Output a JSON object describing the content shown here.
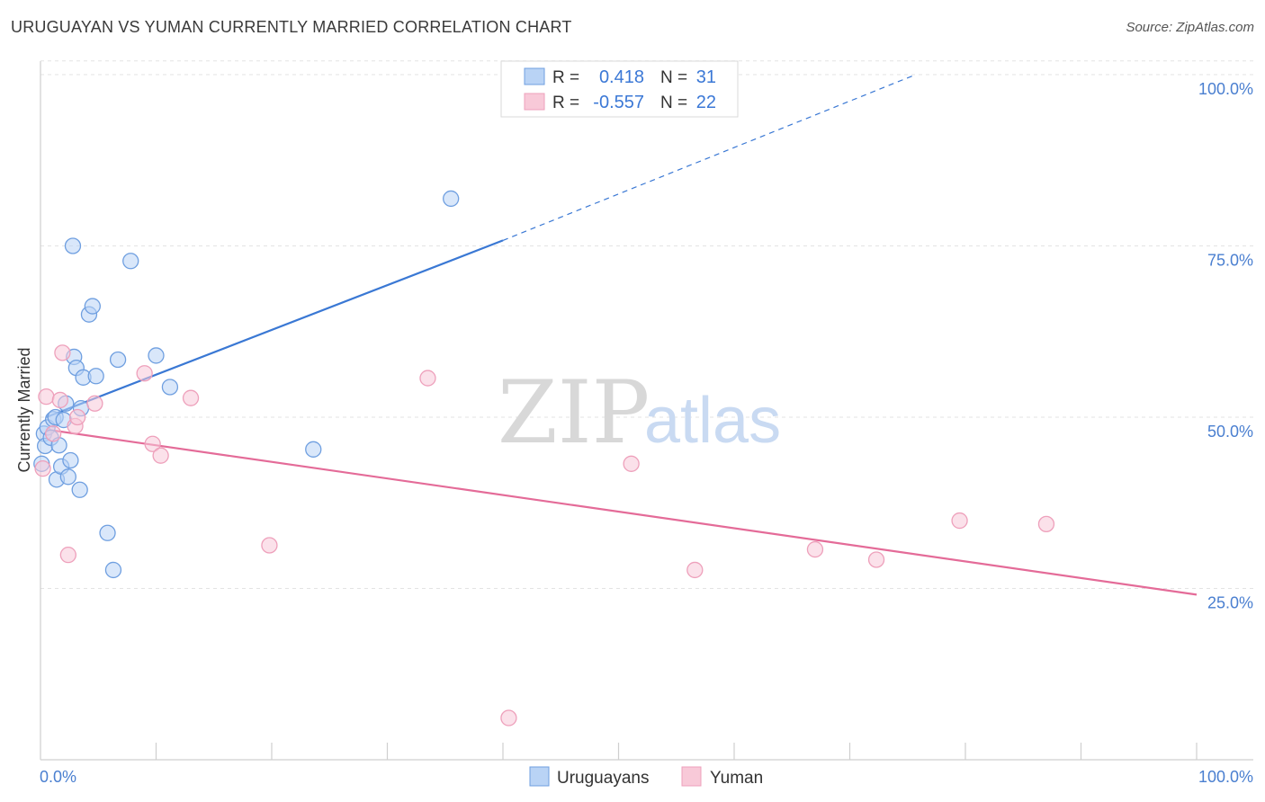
{
  "header": {
    "title": "URUGUAYAN VS YUMAN CURRENTLY MARRIED CORRELATION CHART",
    "source": "Source: ZipAtlas.com"
  },
  "watermark": {
    "zip": "ZIP",
    "atlas": "atlas"
  },
  "colors": {
    "blue": "#3a78d4",
    "blue_fill": "#b9d3f5",
    "blue_stroke": "#6f9fe0",
    "pink": "#e46b98",
    "pink_fill": "#f8c9d8",
    "pink_stroke": "#eea0bb"
  },
  "legend": {
    "r_label": "R =",
    "n_label": "N =",
    "rows": [
      {
        "series": "Uruguayans",
        "r": "0.418",
        "n": "31"
      },
      {
        "series": "Yuman",
        "r": "-0.557",
        "n": "22"
      }
    ]
  },
  "chart_data": {
    "type": "scatter",
    "title": "URUGUAYAN VS YUMAN CURRENTLY MARRIED CORRELATION CHART",
    "xlabel": "",
    "ylabel": "Currently Married",
    "xlim": [
      0,
      100
    ],
    "ylim": [
      0,
      102
    ],
    "x_tick_labels": [
      "0.0%",
      "100.0%"
    ],
    "y_tick_labels": [
      "25.0%",
      "50.0%",
      "75.0%",
      "100.0%"
    ],
    "y_ticks": [
      25,
      50,
      75,
      100
    ],
    "grid": true,
    "legend_position": "bottom-center",
    "series": [
      {
        "name": "Uruguayans",
        "points": [
          [
            0.3,
            47.6
          ],
          [
            0.4,
            45.8
          ],
          [
            0.6,
            48.5
          ],
          [
            0.9,
            47.0
          ],
          [
            1.1,
            49.7
          ],
          [
            1.3,
            50.0
          ],
          [
            1.4,
            40.9
          ],
          [
            1.6,
            45.9
          ],
          [
            1.8,
            42.8
          ],
          [
            2.0,
            49.6
          ],
          [
            2.2,
            52.0
          ],
          [
            2.4,
            41.3
          ],
          [
            2.6,
            43.7
          ],
          [
            2.8,
            75.0
          ],
          [
            2.9,
            58.8
          ],
          [
            3.1,
            57.2
          ],
          [
            3.4,
            39.4
          ],
          [
            3.5,
            51.3
          ],
          [
            3.7,
            55.8
          ],
          [
            4.2,
            65.0
          ],
          [
            4.5,
            66.2
          ],
          [
            4.8,
            56.0
          ],
          [
            5.8,
            33.1
          ],
          [
            6.3,
            27.7
          ],
          [
            6.7,
            58.4
          ],
          [
            7.8,
            72.8
          ],
          [
            10.0,
            59.0
          ],
          [
            11.2,
            54.4
          ],
          [
            23.6,
            45.3
          ],
          [
            35.5,
            81.9
          ],
          [
            0.1,
            43.2
          ]
        ],
        "trend": {
          "x": [
            0.5,
            40.0
          ],
          "y": [
            50.0,
            75.8
          ],
          "dashed_to": [
            75.7,
            100.0
          ]
        }
      },
      {
        "name": "Yuman",
        "points": [
          [
            0.2,
            42.5
          ],
          [
            0.5,
            53.0
          ],
          [
            1.1,
            47.6
          ],
          [
            1.7,
            52.5
          ],
          [
            1.9,
            59.4
          ],
          [
            2.4,
            29.9
          ],
          [
            3.0,
            48.7
          ],
          [
            3.2,
            50.0
          ],
          [
            4.7,
            52.0
          ],
          [
            9.0,
            56.4
          ],
          [
            9.7,
            46.1
          ],
          [
            10.4,
            44.4
          ],
          [
            13.0,
            52.8
          ],
          [
            19.8,
            31.3
          ],
          [
            33.5,
            55.7
          ],
          [
            40.5,
            6.1
          ],
          [
            51.1,
            43.2
          ],
          [
            56.6,
            27.7
          ],
          [
            67.0,
            30.7
          ],
          [
            72.3,
            29.2
          ],
          [
            79.5,
            34.9
          ],
          [
            87.0,
            34.4
          ]
        ],
        "trend": {
          "x": [
            0.5,
            100.0
          ],
          "y": [
            48.2,
            24.1
          ]
        }
      }
    ]
  }
}
